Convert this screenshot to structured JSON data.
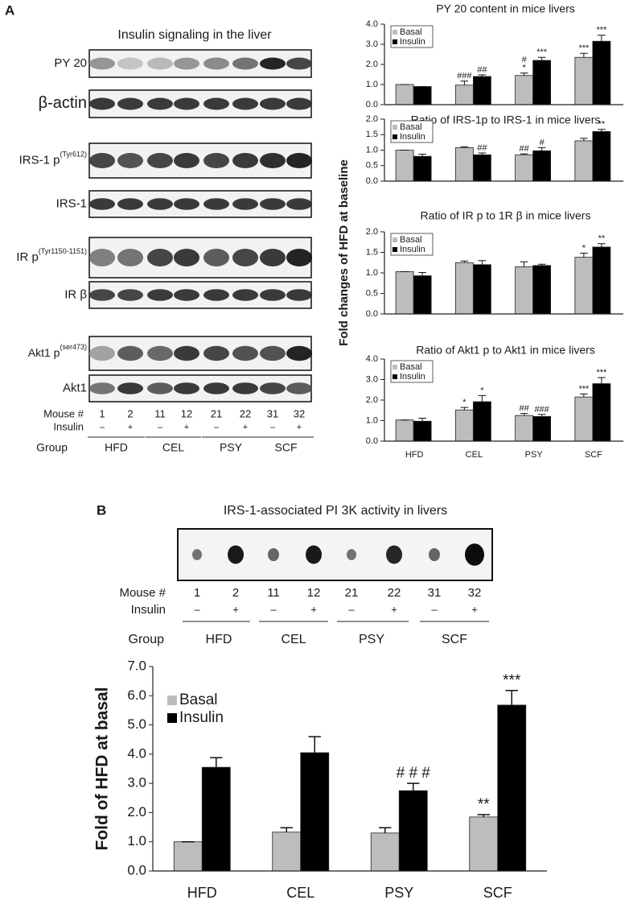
{
  "panel_a": {
    "letter": "A",
    "blot_title": "Insulin signaling  in the liver",
    "rows": [
      {
        "label": "PY 20"
      },
      {
        "label": "β-actin"
      },
      {
        "label": "IRS-1 p",
        "sup": "(Tyr612)"
      },
      {
        "label": "IRS-1"
      },
      {
        "label": "IR p",
        "sup": "(Tyr1150-1151)"
      },
      {
        "label": "IR β"
      },
      {
        "label": "Akt1 p",
        "sup": "(ser473)"
      },
      {
        "label": "Akt1"
      }
    ],
    "mouse_label": "Mouse #",
    "mice": [
      "1",
      "2",
      "11",
      "12",
      "21",
      "22",
      "31",
      "32"
    ],
    "insulin_label": "Insulin",
    "insulin": [
      "–",
      "+",
      "–",
      "+",
      "–",
      "+",
      "–",
      "+"
    ],
    "group_label": "Group",
    "groups": [
      "HFD",
      "CEL",
      "PSY",
      "SCF"
    ],
    "ylabel": "Fold changes of HFD at baseline"
  },
  "panel_b": {
    "letter": "B",
    "blot_title": "IRS-1-associated PI 3K activity in livers",
    "mouse_label": "Mouse #",
    "mice": [
      "1",
      "2",
      "11",
      "12",
      "21",
      "22",
      "31",
      "32"
    ],
    "insulin_label": "Insulin",
    "insulin": [
      "–",
      "+",
      "–",
      "+",
      "–",
      "+",
      "–",
      "+"
    ],
    "group_label": "Group",
    "groups": [
      "HFD",
      "CEL",
      "PSY",
      "SCF"
    ]
  },
  "chart_data": [
    {
      "type": "bar",
      "title": "PY 20 content in mice livers",
      "ylim": [
        0,
        4
      ],
      "yticks": [
        {
          "value": 0,
          "label": "0.0"
        },
        {
          "value": 1,
          "label": "1.0"
        },
        {
          "value": 2,
          "label": "2.0"
        },
        {
          "value": 3,
          "label": "3.0"
        },
        {
          "value": 4,
          "label": "4.0"
        }
      ],
      "legend": "upper left",
      "series": [
        {
          "name": "Basal",
          "color": "#bdbdbd",
          "values": [
            1.0,
            0.97,
            1.45,
            2.35
          ],
          "errors": [
            0,
            0.2,
            0.12,
            0.2
          ],
          "marks": [
            [],
            [
              "###"
            ],
            [
              "#",
              "*"
            ],
            [
              "***"
            ]
          ]
        },
        {
          "name": "Insulin",
          "color": "#000000",
          "values": [
            0.9,
            1.4,
            2.2,
            3.15
          ],
          "errors": [
            0,
            0.08,
            0.15,
            0.3
          ],
          "marks": [
            [],
            [
              "##"
            ],
            [
              "***"
            ],
            [
              "***"
            ]
          ]
        }
      ]
    },
    {
      "type": "bar",
      "title": "Ratio of IRS-1p to IRS-1 in mice livers",
      "ylim": [
        0,
        2
      ],
      "yticks": [
        {
          "value": 0,
          "label": "0.0"
        },
        {
          "value": 0.5,
          "label": "0.5"
        },
        {
          "value": 1,
          "label": "1.0"
        },
        {
          "value": 1.5,
          "label": "1.5"
        },
        {
          "value": 2,
          "label": "2.0"
        }
      ],
      "legend": "upper left",
      "series": [
        {
          "name": "Basal",
          "color": "#bdbdbd",
          "values": [
            1.0,
            1.08,
            0.85,
            1.3
          ],
          "errors": [
            0,
            0.03,
            0.03,
            0.08
          ],
          "marks": [
            [],
            [],
            [
              "##"
            ],
            []
          ]
        },
        {
          "name": "Insulin",
          "color": "#000000",
          "values": [
            0.8,
            0.85,
            0.98,
            1.6
          ],
          "errors": [
            0.07,
            0.06,
            0.1,
            0.07
          ],
          "marks": [
            [],
            [
              "##"
            ],
            [
              "#"
            ],
            [
              "**"
            ]
          ]
        }
      ]
    },
    {
      "type": "bar",
      "title": "Ratio of IR p to 1R β in mice livers",
      "ylim": [
        0,
        2
      ],
      "yticks": [
        {
          "value": 0,
          "label": "0.0"
        },
        {
          "value": 0.5,
          "label": "0.5"
        },
        {
          "value": 1,
          "label": "1.0"
        },
        {
          "value": 1.5,
          "label": "1.5"
        },
        {
          "value": 2,
          "label": "2.0"
        }
      ],
      "legend": "upper left",
      "series": [
        {
          "name": "Basal",
          "color": "#bdbdbd",
          "values": [
            1.03,
            1.25,
            1.15,
            1.38
          ],
          "errors": [
            0,
            0.04,
            0.12,
            0.1
          ],
          "marks": [
            [],
            [],
            [],
            [
              "*"
            ]
          ]
        },
        {
          "name": "Insulin",
          "color": "#000000",
          "values": [
            0.93,
            1.2,
            1.18,
            1.63
          ],
          "errors": [
            0.08,
            0.1,
            0.03,
            0.08
          ],
          "marks": [
            [],
            [],
            [],
            [
              "**"
            ]
          ]
        }
      ]
    },
    {
      "type": "bar",
      "title": "Ratio of Akt1 p to Akt1 in mice livers",
      "categories": [
        "HFD",
        "CEL",
        "PSY",
        "SCF"
      ],
      "ylim": [
        0,
        4
      ],
      "yticks": [
        {
          "value": 0,
          "label": "0.0"
        },
        {
          "value": 1,
          "label": "1.0"
        },
        {
          "value": 2,
          "label": "2.0"
        },
        {
          "value": 3,
          "label": "3.0"
        },
        {
          "value": 4,
          "label": "4.0"
        }
      ],
      "legend": "upper left",
      "series": [
        {
          "name": "Basal",
          "color": "#bdbdbd",
          "values": [
            1.03,
            1.52,
            1.25,
            2.15
          ],
          "errors": [
            0,
            0.12,
            0.1,
            0.15
          ],
          "marks": [
            [],
            [
              "*"
            ],
            [
              "##"
            ],
            [
              "***"
            ]
          ]
        },
        {
          "name": "Insulin",
          "color": "#000000",
          "values": [
            0.97,
            1.92,
            1.2,
            2.8
          ],
          "errors": [
            0.15,
            0.3,
            0.1,
            0.3
          ],
          "marks": [
            [],
            [
              "*"
            ],
            [
              "###"
            ],
            [
              "***"
            ]
          ]
        }
      ]
    },
    {
      "type": "bar",
      "ylabel": "Fold of HFD at basal",
      "categories": [
        "HFD",
        "CEL",
        "PSY",
        "SCF"
      ],
      "ylim": [
        0,
        7
      ],
      "yticks": [
        {
          "value": 0,
          "label": "0.0"
        },
        {
          "value": 1,
          "label": "1.0"
        },
        {
          "value": 2,
          "label": "2.0"
        },
        {
          "value": 3,
          "label": "3.0"
        },
        {
          "value": 4,
          "label": "4.0"
        },
        {
          "value": 5,
          "label": "5.0"
        },
        {
          "value": 6,
          "label": "6.0"
        },
        {
          "value": 7,
          "label": "7.0"
        }
      ],
      "legend": "upper left",
      "series": [
        {
          "name": "Basal",
          "color": "#bdbdbd",
          "values": [
            1.0,
            1.33,
            1.3,
            1.85
          ],
          "errors": [
            0,
            0.15,
            0.18,
            0.08
          ],
          "marks": [
            [],
            [],
            [],
            [
              "**"
            ]
          ]
        },
        {
          "name": "Insulin",
          "color": "#000000",
          "values": [
            3.55,
            4.05,
            2.75,
            5.68
          ],
          "errors": [
            0.33,
            0.55,
            0.25,
            0.5
          ],
          "marks": [
            [],
            [],
            [
              "# # #"
            ],
            [
              "***"
            ]
          ]
        }
      ]
    }
  ]
}
